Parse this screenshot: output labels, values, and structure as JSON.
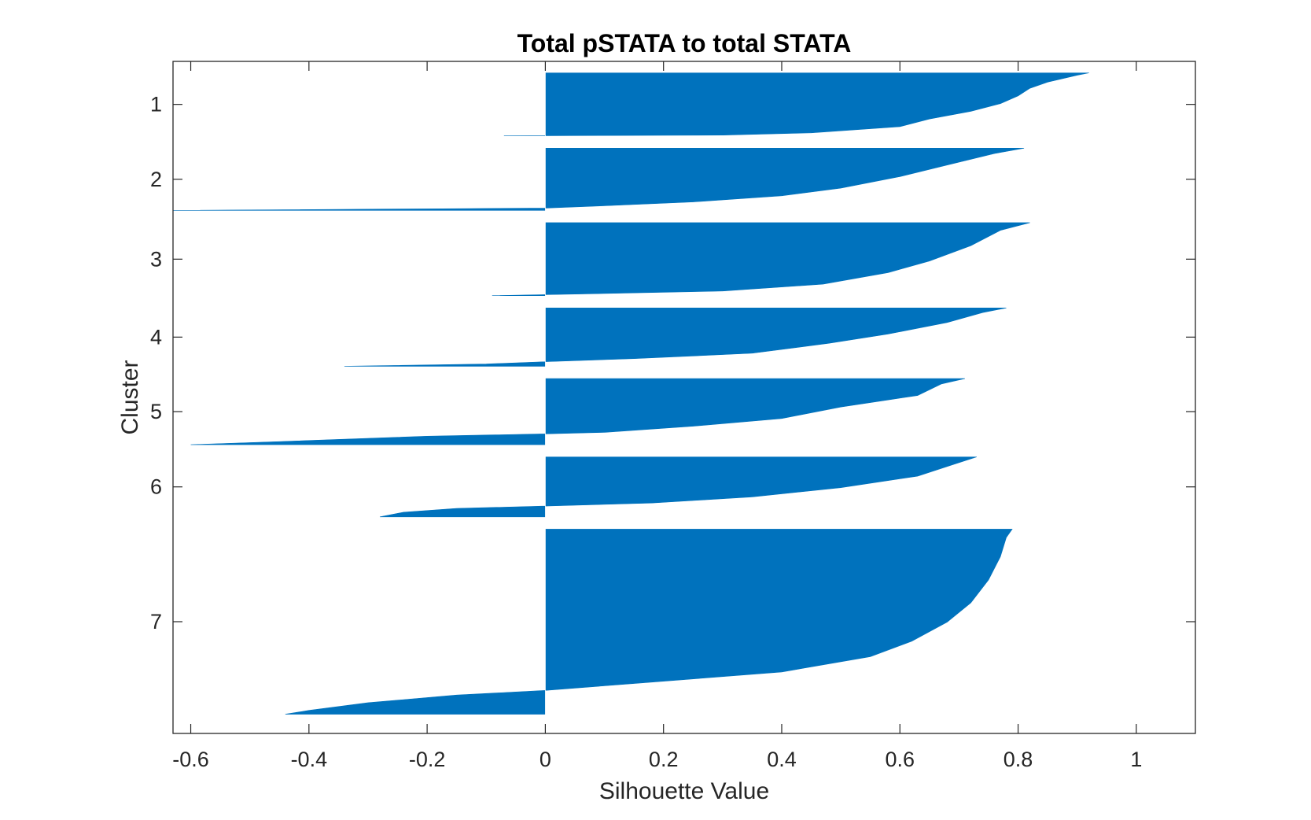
{
  "chart_data": {
    "type": "bar",
    "orientation": "horizontal",
    "title": "Total pSTATA to total STATA",
    "xlabel": "Silhouette Value",
    "ylabel": "Cluster",
    "xlim": [
      -0.63,
      1.1
    ],
    "xticks": [
      "-0.6",
      "-0.4",
      "-0.2",
      "0",
      "0.2",
      "0.4",
      "0.6",
      "0.8",
      "1"
    ],
    "yticks": [
      "1",
      "2",
      "3",
      "4",
      "5",
      "6",
      "7"
    ],
    "grid": false,
    "bar_color": "#0072BD",
    "clusters": [
      {
        "label": "1",
        "span": [
          0.6,
          1.42
        ],
        "profile": [
          [
            0.6,
            0.92
          ],
          [
            0.63,
            0.9
          ],
          [
            0.72,
            0.85
          ],
          [
            0.8,
            0.82
          ],
          [
            0.9,
            0.8
          ],
          [
            1.0,
            0.77
          ],
          [
            1.1,
            0.72
          ],
          [
            1.2,
            0.65
          ],
          [
            1.3,
            0.6
          ],
          [
            1.38,
            0.45
          ],
          [
            1.41,
            0.3
          ],
          [
            1.42,
            -0.07
          ]
        ]
      },
      {
        "label": "2",
        "span": [
          1.58,
          2.39
        ],
        "profile": [
          [
            1.58,
            0.81
          ],
          [
            1.65,
            0.76
          ],
          [
            1.8,
            0.68
          ],
          [
            1.95,
            0.6
          ],
          [
            2.1,
            0.5
          ],
          [
            2.2,
            0.4
          ],
          [
            2.28,
            0.25
          ],
          [
            2.33,
            0.1
          ],
          [
            2.36,
            0.0
          ],
          [
            2.37,
            -0.2
          ],
          [
            2.39,
            -0.63
          ]
        ]
      },
      {
        "label": "3",
        "span": [
          2.55,
          3.5
        ],
        "profile": [
          [
            2.55,
            0.82
          ],
          [
            2.65,
            0.77
          ],
          [
            2.85,
            0.72
          ],
          [
            3.05,
            0.65
          ],
          [
            3.2,
            0.58
          ],
          [
            3.35,
            0.47
          ],
          [
            3.44,
            0.3
          ],
          [
            3.48,
            0.05
          ],
          [
            3.5,
            -0.09
          ]
        ]
      },
      {
        "label": "4",
        "span": [
          3.66,
          4.42
        ],
        "profile": [
          [
            3.66,
            0.78
          ],
          [
            3.72,
            0.74
          ],
          [
            3.85,
            0.68
          ],
          [
            4.0,
            0.58
          ],
          [
            4.12,
            0.48
          ],
          [
            4.25,
            0.35
          ],
          [
            4.32,
            0.15
          ],
          [
            4.36,
            0.0
          ],
          [
            4.39,
            -0.1
          ],
          [
            4.42,
            -0.34
          ]
        ]
      },
      {
        "label": "5",
        "span": [
          4.58,
          5.44
        ],
        "profile": [
          [
            4.58,
            0.71
          ],
          [
            4.65,
            0.67
          ],
          [
            4.8,
            0.63
          ],
          [
            4.95,
            0.5
          ],
          [
            5.1,
            0.4
          ],
          [
            5.2,
            0.25
          ],
          [
            5.28,
            0.1
          ],
          [
            5.3,
            0.0
          ],
          [
            5.33,
            -0.2
          ],
          [
            5.4,
            -0.45
          ],
          [
            5.44,
            -0.6
          ]
        ]
      },
      {
        "label": "6",
        "span": [
          5.6,
          6.38
        ],
        "profile": [
          [
            5.6,
            0.73
          ],
          [
            5.7,
            0.69
          ],
          [
            5.85,
            0.63
          ],
          [
            6.0,
            0.5
          ],
          [
            6.12,
            0.35
          ],
          [
            6.2,
            0.18
          ],
          [
            6.24,
            0.0
          ],
          [
            6.27,
            -0.15
          ],
          [
            6.32,
            -0.24
          ],
          [
            6.38,
            -0.28
          ]
        ]
      },
      {
        "label": "7",
        "span": [
          6.54,
          8.95
        ],
        "profile": [
          [
            6.54,
            0.79
          ],
          [
            6.65,
            0.78
          ],
          [
            6.9,
            0.77
          ],
          [
            7.2,
            0.75
          ],
          [
            7.5,
            0.72
          ],
          [
            7.75,
            0.68
          ],
          [
            8.0,
            0.62
          ],
          [
            8.2,
            0.55
          ],
          [
            8.4,
            0.4
          ],
          [
            8.55,
            0.15
          ],
          [
            8.64,
            0.0
          ],
          [
            8.7,
            -0.15
          ],
          [
            8.8,
            -0.3
          ],
          [
            8.9,
            -0.4
          ],
          [
            8.95,
            -0.44
          ]
        ]
      }
    ]
  }
}
